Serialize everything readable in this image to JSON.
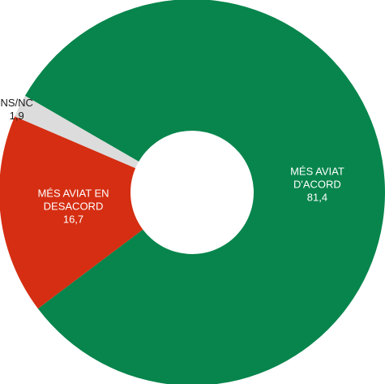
{
  "chart_data": {
    "type": "pie",
    "donut": true,
    "legend": "none",
    "slices": [
      {
        "label_lines": [
          "MÉS AVIAT",
          "D'ACORD"
        ],
        "value": 81.4,
        "value_text": "81,4",
        "color": "#07854c",
        "label_color": "#ffffff"
      },
      {
        "label_lines": [
          "MÉS AVIAT EN",
          "DESACORD"
        ],
        "value": 16.7,
        "value_text": "16,7",
        "color": "#d52e12",
        "label_color": "#ffffff"
      },
      {
        "label_lines": [
          "NS/NC"
        ],
        "value": 1.9,
        "value_text": "1,9",
        "color": "#dcdcdc",
        "label_color": "#1a1a1a"
      }
    ]
  }
}
